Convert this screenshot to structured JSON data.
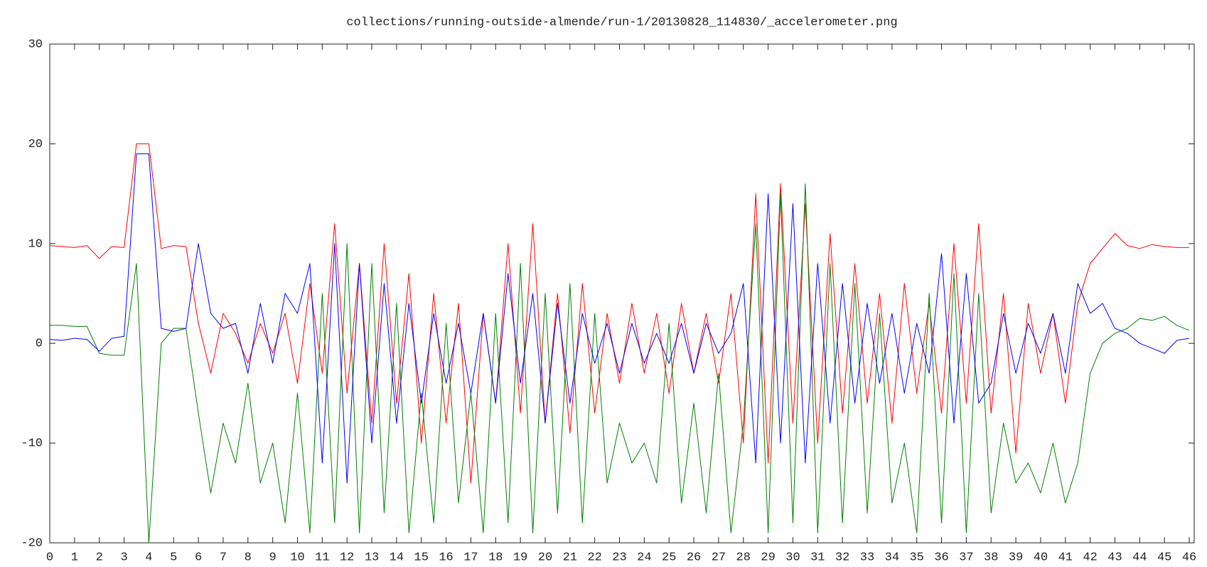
{
  "chart_data": {
    "type": "line",
    "title": "collections/running-outside-almende/run-1/20130828_114830/_accelerometer.png",
    "x": [
      0,
      0.5,
      1,
      1.5,
      2,
      2.5,
      3,
      3.5,
      4,
      4.5,
      5,
      5.5,
      6,
      6.5,
      7,
      7.5,
      8,
      8.5,
      9,
      9.5,
      10,
      10.5,
      11,
      11.5,
      12,
      12.5,
      13,
      13.5,
      14,
      14.5,
      15,
      15.5,
      16,
      16.5,
      17,
      17.5,
      18,
      18.5,
      19,
      19.5,
      20,
      20.5,
      21,
      21.5,
      22,
      22.5,
      23,
      23.5,
      24,
      24.5,
      25,
      25.5,
      26,
      26.5,
      27,
      27.5,
      28,
      28.5,
      29,
      29.5,
      30,
      30.5,
      31,
      31.5,
      32,
      32.5,
      33,
      33.5,
      34,
      34.5,
      35,
      35.5,
      36,
      36.5,
      37,
      37.5,
      38,
      38.5,
      39,
      39.5,
      40,
      40.5,
      41,
      41.5,
      42,
      42.5,
      43,
      43.5,
      44,
      44.5,
      45,
      45.5,
      46
    ],
    "series": [
      {
        "color": "#ff0000",
        "values": [
          9.8,
          9.7,
          9.6,
          9.8,
          8.5,
          9.7,
          9.6,
          20,
          20,
          9.5,
          9.8,
          9.7,
          2,
          -3,
          3,
          1,
          -2,
          2,
          -1,
          3,
          -4,
          6,
          -3,
          12,
          -5,
          8,
          -8,
          10,
          -6,
          7,
          -10,
          5,
          -8,
          4,
          -14,
          3,
          -6,
          10,
          -7,
          12,
          -8,
          5,
          -9,
          6,
          -7,
          3,
          -4,
          4,
          -3,
          3,
          -5,
          4,
          -3,
          3,
          -4,
          5,
          -10,
          15,
          -12,
          16,
          -8,
          14,
          -10,
          11,
          -7,
          8,
          -6,
          5,
          -8,
          6,
          -5,
          4,
          -7,
          10,
          -6,
          12,
          -7,
          5,
          -11,
          4,
          -3,
          3,
          -6,
          4,
          8,
          9.5,
          11,
          9.8,
          9.5,
          9.9,
          9.7,
          9.6,
          9.6
        ]
      },
      {
        "color": "#008000",
        "values": [
          1.8,
          1.8,
          1.7,
          1.7,
          -1,
          -1.2,
          -1.2,
          8,
          -20,
          0,
          1.5,
          1.5,
          -7,
          -15,
          -8,
          -12,
          -4,
          -14,
          -10,
          -18,
          -5,
          -19,
          5,
          -18,
          10,
          -19,
          8,
          -17,
          4,
          -19,
          -5,
          -18,
          2,
          -16,
          -5,
          -19,
          3,
          -18,
          8,
          -19,
          5,
          -17,
          6,
          -18,
          3,
          -14,
          -8,
          -12,
          -10,
          -14,
          2,
          -16,
          -6,
          -17,
          -3,
          -19,
          -8,
          12,
          -19,
          15,
          -18,
          16,
          -19,
          8,
          -18,
          6,
          -17,
          3,
          -16,
          -10,
          -19,
          5,
          -18,
          7,
          -19,
          5,
          -17,
          -8,
          -14,
          -12,
          -15,
          -10,
          -16,
          -12,
          -3,
          0,
          1,
          1.5,
          2.5,
          2.3,
          2.7,
          1.8,
          1.3
        ]
      },
      {
        "color": "#0000ff",
        "values": [
          0.4,
          0.3,
          0.5,
          0.4,
          -0.8,
          0.5,
          0.7,
          19,
          19,
          1.5,
          1.2,
          1.5,
          10,
          3,
          1.5,
          2,
          -3,
          4,
          -2,
          5,
          3,
          8,
          -12,
          10,
          -14,
          8,
          -10,
          6,
          -8,
          4,
          -6,
          3,
          -4,
          2,
          -5,
          3,
          -6,
          7,
          -4,
          5,
          -8,
          4,
          -6,
          3,
          -2,
          2,
          -3,
          2,
          -2,
          1,
          -2,
          2,
          -3,
          2,
          -1,
          1,
          6,
          -12,
          15,
          -10,
          14,
          -12,
          8,
          -8,
          6,
          -6,
          4,
          -4,
          3,
          -5,
          2,
          -3,
          9,
          -8,
          7,
          -6,
          -4,
          3,
          -3,
          2,
          -1,
          3,
          -3,
          6,
          3,
          4,
          1.5,
          1,
          0,
          -0.5,
          -1,
          0.3,
          0.5
        ]
      }
    ],
    "xlim": [
      0,
      46.2
    ],
    "ylim": [
      -20,
      30
    ],
    "xticks": [
      0,
      1,
      2,
      3,
      4,
      5,
      6,
      7,
      8,
      9,
      10,
      11,
      12,
      13,
      14,
      15,
      16,
      17,
      18,
      19,
      20,
      21,
      22,
      23,
      24,
      25,
      26,
      27,
      28,
      29,
      30,
      31,
      32,
      33,
      34,
      35,
      36,
      37,
      38,
      39,
      40,
      41,
      42,
      43,
      44,
      45,
      46
    ],
    "yticks": [
      -20,
      -10,
      0,
      10,
      20,
      30
    ]
  }
}
